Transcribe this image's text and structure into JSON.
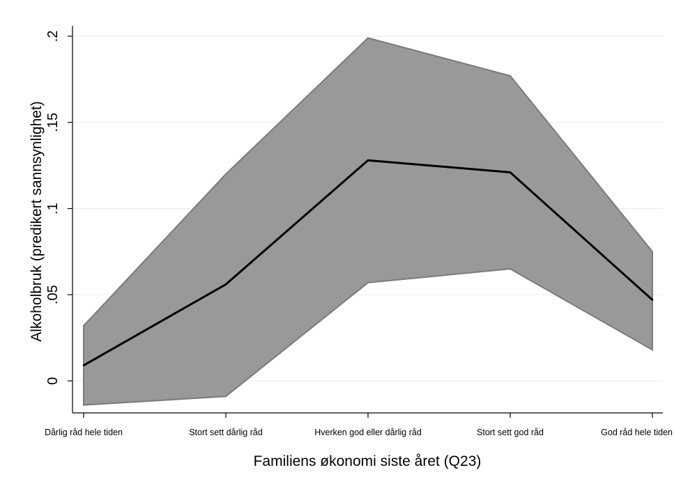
{
  "chart_data": {
    "type": "line",
    "title": "",
    "xlabel": "Familiens økonomi siste året (Q23)",
    "ylabel": "Alkoholbruk (predikert sannsynlighet)",
    "categories": [
      "Dårlig råd hele tiden",
      "Stort sett dårlig råd",
      "Hverken god eller dårlig råd",
      "Stort sett god råd",
      "God råd hele tiden"
    ],
    "series": [
      {
        "values": [
          0.009,
          0.056,
          0.128,
          0.121,
          0.047
        ],
        "lower": [
          -0.014,
          -0.009,
          0.057,
          0.065,
          0.018
        ],
        "upper": [
          0.032,
          0.12,
          0.199,
          0.177,
          0.075
        ]
      }
    ],
    "yticks": [
      0,
      0.05,
      0.1,
      0.15,
      0.2
    ],
    "ytick_labels": [
      "0",
      ".05",
      ".1",
      ".15",
      ".2"
    ],
    "ylim": [
      -0.018,
      0.207
    ],
    "grid": true,
    "legend": "none",
    "colors": {
      "line": "#000000",
      "band_fill": "#999999",
      "band_edge": "#7a7a7a",
      "grid": "#e9eff2"
    }
  }
}
